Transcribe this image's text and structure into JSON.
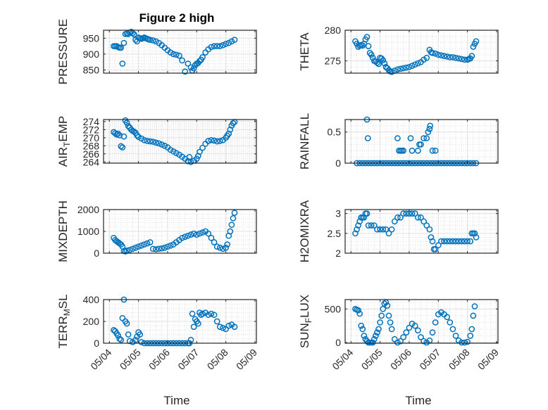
{
  "figure": {
    "title": "Figure 2 high",
    "xlabel": "Time",
    "x_ticks": [
      "05/04",
      "05/05",
      "05/06",
      "05/07",
      "05/08",
      "05/09"
    ]
  },
  "colors": {
    "marker": "#0072BD",
    "grid": "#dfdfdf",
    "axis": "#262626"
  },
  "chart_data": [
    {
      "type": "scatter",
      "ylabel": "PRESSURE",
      "ylim": [
        840,
        975
      ],
      "yticks": [
        850,
        900,
        950
      ],
      "x": [
        0.15,
        0.2,
        0.25,
        0.3,
        0.35,
        0.4,
        0.45,
        0.5,
        0.55,
        0.6,
        0.65,
        0.7,
        0.75,
        0.8,
        0.85,
        0.9,
        0.95,
        1.0,
        1.05,
        1.1,
        1.15,
        1.2,
        1.25,
        1.3,
        1.35,
        1.4,
        1.5,
        1.6,
        1.7,
        1.8,
        1.9,
        2.0,
        2.1,
        2.2,
        2.3,
        2.4,
        2.5,
        2.6,
        2.7,
        2.8,
        2.85,
        2.9,
        2.95,
        3.0,
        3.05,
        3.1,
        3.15,
        3.2,
        3.3,
        3.4,
        3.5,
        3.6,
        3.7,
        3.8,
        3.9,
        4.0,
        4.1,
        4.2,
        4.3
      ],
      "y": [
        925,
        925,
        925,
        922,
        920,
        920,
        870,
        935,
        963,
        965,
        963,
        968,
        970,
        966,
        962,
        945,
        940,
        952,
        950,
        948,
        950,
        952,
        950,
        948,
        946,
        945,
        943,
        940,
        935,
        928,
        920,
        912,
        905,
        900,
        898,
        895,
        880,
        845,
        870,
        858,
        848,
        855,
        865,
        870,
        872,
        878,
        882,
        890,
        905,
        915,
        922,
        925,
        925,
        925,
        928,
        932,
        935,
        940,
        945
      ]
    },
    {
      "type": "scatter",
      "ylabel": "THETA",
      "ylim": [
        273,
        280
      ],
      "yticks": [
        275,
        280
      ],
      "x": [
        0.15,
        0.2,
        0.25,
        0.3,
        0.35,
        0.4,
        0.45,
        0.5,
        0.55,
        0.6,
        0.65,
        0.7,
        0.75,
        0.8,
        0.85,
        0.9,
        0.95,
        1.0,
        1.05,
        1.1,
        1.15,
        1.2,
        1.25,
        1.3,
        1.35,
        1.4,
        1.5,
        1.6,
        1.7,
        1.8,
        1.9,
        2.0,
        2.1,
        2.2,
        2.3,
        2.4,
        2.5,
        2.6,
        2.7,
        2.75,
        2.8,
        2.9,
        3.0,
        3.1,
        3.2,
        3.3,
        3.4,
        3.5,
        3.6,
        3.7,
        3.8,
        3.9,
        4.0,
        4.05,
        4.1,
        4.15,
        4.2,
        4.25,
        4.3
      ],
      "y": [
        278.2,
        277.8,
        277.3,
        277.5,
        277.6,
        277.5,
        277.8,
        278.5,
        278.9,
        277.4,
        276.3,
        276.0,
        275.5,
        275.0,
        274.9,
        274.7,
        274.5,
        275.5,
        275.4,
        275.1,
        274.6,
        274.0,
        273.8,
        273.5,
        273.3,
        273.2,
        273.4,
        273.6,
        273.7,
        273.8,
        273.9,
        274.0,
        274.2,
        274.4,
        274.6,
        274.8,
        275.2,
        275.5,
        276.8,
        276.4,
        276.3,
        276.2,
        276.0,
        275.9,
        275.8,
        275.7,
        275.6,
        275.6,
        275.5,
        275.4,
        275.3,
        275.2,
        275.2,
        275.3,
        275.4,
        275.8,
        277.3,
        277.8,
        278.2
      ]
    },
    {
      "type": "scatter",
      "ylabel": "AIR_TEMP",
      "ylim": [
        263.7,
        274.5
      ],
      "yticks": [
        264,
        266,
        268,
        270,
        272,
        274
      ],
      "x": [
        0.15,
        0.2,
        0.25,
        0.3,
        0.35,
        0.4,
        0.45,
        0.5,
        0.55,
        0.6,
        0.65,
        0.7,
        0.75,
        0.8,
        0.85,
        0.9,
        0.95,
        1.0,
        1.1,
        1.2,
        1.3,
        1.4,
        1.5,
        1.6,
        1.7,
        1.8,
        1.9,
        2.0,
        2.1,
        2.2,
        2.3,
        2.4,
        2.5,
        2.6,
        2.7,
        2.75,
        2.8,
        2.9,
        3.0,
        3.05,
        3.1,
        3.2,
        3.3,
        3.4,
        3.5,
        3.6,
        3.7,
        3.8,
        3.9,
        4.0,
        4.05,
        4.1,
        4.15,
        4.2,
        4.25,
        4.3
      ],
      "y": [
        271.4,
        271.1,
        270.8,
        271.0,
        270.6,
        267.9,
        267.6,
        270.3,
        274.3,
        273.7,
        272.9,
        272.5,
        272.0,
        271.7,
        271.5,
        271.2,
        270.6,
        270.2,
        269.8,
        269.4,
        269.2,
        269.1,
        269.0,
        268.8,
        268.6,
        268.3,
        268.0,
        267.6,
        267.0,
        266.6,
        266.2,
        265.8,
        265.3,
        264.8,
        264.2,
        265.2,
        264.0,
        264.3,
        264.8,
        265.5,
        266.5,
        267.5,
        268.5,
        269.2,
        269.4,
        269.3,
        269.1,
        269.2,
        269.4,
        270.0,
        270.5,
        271.0,
        272.0,
        273.0,
        273.6,
        273.9
      ]
    },
    {
      "type": "scatter",
      "ylabel": "RAINFALL",
      "ylim": [
        0,
        0.7
      ],
      "yticks": [
        0,
        0.5
      ],
      "x": [
        0.2,
        0.3,
        0.4,
        0.5,
        0.6,
        0.7,
        0.8,
        0.9,
        1.0,
        1.1,
        1.2,
        1.3,
        1.4,
        1.5,
        1.6,
        1.7,
        1.8,
        1.9,
        2.0,
        2.1,
        2.2,
        2.3,
        2.4,
        2.5,
        2.6,
        2.7,
        2.8,
        2.9,
        3.0,
        3.1,
        3.2,
        3.3,
        3.4,
        3.5,
        3.6,
        3.7,
        3.8,
        3.9,
        4.0,
        4.1,
        4.2,
        4.3,
        0.55,
        0.58,
        1.6,
        1.65,
        1.7,
        1.75,
        1.8,
        2.05,
        2.1,
        2.3,
        2.35,
        2.4,
        2.5,
        2.6,
        2.65,
        2.7,
        2.72,
        2.8,
        2.9
      ],
      "y": [
        0,
        0,
        0,
        0,
        0,
        0,
        0,
        0,
        0,
        0,
        0,
        0,
        0,
        0,
        0,
        0,
        0,
        0,
        0,
        0,
        0,
        0,
        0,
        0,
        0,
        0,
        0,
        0,
        0,
        0,
        0,
        0,
        0,
        0,
        0,
        0,
        0,
        0,
        0,
        0,
        0,
        0,
        0.7,
        0.4,
        0.4,
        0.2,
        0.2,
        0.2,
        0.2,
        0.4,
        0.2,
        0.2,
        0.3,
        0.3,
        0.4,
        0.4,
        0.5,
        0.55,
        0.6,
        0.2,
        0.2
      ]
    },
    {
      "type": "scatter",
      "ylabel": "MIXDEPTH",
      "ylim": [
        0,
        2000
      ],
      "yticks": [
        0,
        1000,
        2000
      ],
      "x": [
        0.15,
        0.2,
        0.25,
        0.3,
        0.35,
        0.4,
        0.45,
        0.5,
        0.55,
        0.6,
        0.7,
        0.8,
        0.9,
        1.0,
        1.1,
        1.2,
        1.3,
        1.4,
        1.5,
        1.6,
        1.7,
        1.8,
        1.9,
        2.0,
        2.1,
        2.2,
        2.3,
        2.4,
        2.5,
        2.6,
        2.7,
        2.8,
        2.9,
        3.0,
        3.1,
        3.2,
        3.3,
        3.4,
        3.5,
        3.6,
        3.7,
        3.8,
        3.9,
        4.0,
        4.05,
        4.1,
        4.15,
        4.2,
        4.25,
        4.3
      ],
      "y": [
        700,
        600,
        550,
        500,
        450,
        400,
        300,
        100,
        80,
        120,
        150,
        200,
        250,
        300,
        350,
        400,
        450,
        500,
        200,
        180,
        200,
        220,
        250,
        300,
        350,
        400,
        500,
        600,
        700,
        750,
        800,
        850,
        900,
        850,
        900,
        950,
        1000,
        900,
        700,
        500,
        300,
        250,
        200,
        250,
        400,
        800,
        1000,
        1300,
        1600,
        1850
      ]
    },
    {
      "type": "scatter",
      "ylabel": "H2OMIXRA",
      "ylim": [
        2,
        3.1
      ],
      "yticks": [
        2,
        2.5,
        3
      ],
      "x": [
        0.15,
        0.2,
        0.25,
        0.3,
        0.35,
        0.4,
        0.45,
        0.5,
        0.55,
        0.6,
        0.7,
        0.8,
        0.9,
        1.0,
        1.1,
        1.2,
        1.3,
        1.4,
        1.5,
        1.6,
        1.7,
        1.8,
        1.9,
        2.0,
        2.1,
        2.2,
        2.3,
        2.4,
        2.5,
        2.6,
        2.7,
        2.75,
        2.8,
        2.85,
        2.9,
        3.0,
        3.1,
        3.2,
        3.3,
        3.4,
        3.5,
        3.6,
        3.7,
        3.8,
        3.9,
        4.0,
        4.1,
        4.15,
        4.2,
        4.25,
        4.3
      ],
      "y": [
        2.5,
        2.6,
        2.7,
        2.8,
        2.9,
        2.9,
        2.9,
        3.0,
        3.0,
        2.7,
        2.7,
        2.7,
        2.6,
        2.6,
        2.6,
        2.6,
        2.5,
        2.6,
        2.8,
        2.9,
        2.9,
        3.0,
        3.0,
        3.0,
        3.0,
        3.0,
        2.9,
        2.9,
        2.8,
        2.7,
        2.6,
        2.4,
        2.3,
        2.1,
        2.1,
        2.2,
        2.3,
        2.3,
        2.3,
        2.3,
        2.3,
        2.3,
        2.3,
        2.3,
        2.3,
        2.3,
        2.3,
        2.5,
        2.5,
        2.5,
        2.4
      ]
    },
    {
      "type": "scatter",
      "ylabel": "TERR_MSL",
      "ylim": [
        0,
        400
      ],
      "yticks": [
        0,
        200,
        400
      ],
      "x": [
        0.15,
        0.2,
        0.25,
        0.3,
        0.35,
        0.4,
        0.45,
        0.5,
        0.55,
        0.6,
        0.65,
        0.7,
        0.8,
        0.9,
        0.95,
        1.0,
        1.05,
        1.1,
        1.2,
        1.3,
        1.4,
        1.5,
        1.6,
        1.7,
        1.8,
        1.9,
        2.0,
        2.1,
        2.2,
        2.3,
        2.4,
        2.5,
        2.6,
        2.7,
        2.75,
        2.8,
        2.85,
        2.9,
        2.95,
        3.0,
        3.05,
        3.1,
        3.15,
        3.2,
        3.3,
        3.4,
        3.5,
        3.6,
        3.7,
        3.8,
        3.9,
        4.0,
        4.1,
        4.2,
        4.3
      ],
      "y": [
        120,
        110,
        90,
        70,
        40,
        30,
        230,
        400,
        200,
        180,
        80,
        20,
        10,
        30,
        60,
        100,
        80,
        10,
        0,
        0,
        0,
        0,
        0,
        0,
        0,
        0,
        0,
        0,
        0,
        0,
        0,
        0,
        0,
        0,
        0,
        30,
        270,
        150,
        220,
        200,
        180,
        280,
        260,
        270,
        280,
        260,
        270,
        260,
        200,
        150,
        140,
        130,
        160,
        170,
        150
      ]
    },
    {
      "type": "scatter",
      "ylabel": "SUN_FLUX",
      "ylim": [
        -10,
        640
      ],
      "yticks": [
        0,
        500
      ],
      "x": [
        0.15,
        0.2,
        0.25,
        0.3,
        0.35,
        0.4,
        0.45,
        0.5,
        0.55,
        0.6,
        0.65,
        0.7,
        0.75,
        0.8,
        0.85,
        0.9,
        0.95,
        1.0,
        1.05,
        1.1,
        1.15,
        1.2,
        1.25,
        1.3,
        1.35,
        1.4,
        1.5,
        1.6,
        1.7,
        1.8,
        1.9,
        2.0,
        2.1,
        2.2,
        2.3,
        2.4,
        2.5,
        2.6,
        2.7,
        2.8,
        2.9,
        3.0,
        3.1,
        3.2,
        3.3,
        3.4,
        3.5,
        3.6,
        3.7,
        3.8,
        3.9,
        4.0,
        4.1,
        4.15,
        4.2,
        4.25
      ],
      "y": [
        500,
        490,
        480,
        430,
        250,
        200,
        100,
        50,
        20,
        0,
        0,
        0,
        0,
        50,
        100,
        150,
        200,
        300,
        400,
        500,
        580,
        600,
        550,
        400,
        300,
        200,
        50,
        0,
        20,
        80,
        150,
        220,
        280,
        250,
        180,
        80,
        20,
        0,
        30,
        150,
        300,
        420,
        450,
        420,
        380,
        300,
        200,
        100,
        30,
        0,
        0,
        10,
        100,
        200,
        400,
        540
      ]
    }
  ]
}
